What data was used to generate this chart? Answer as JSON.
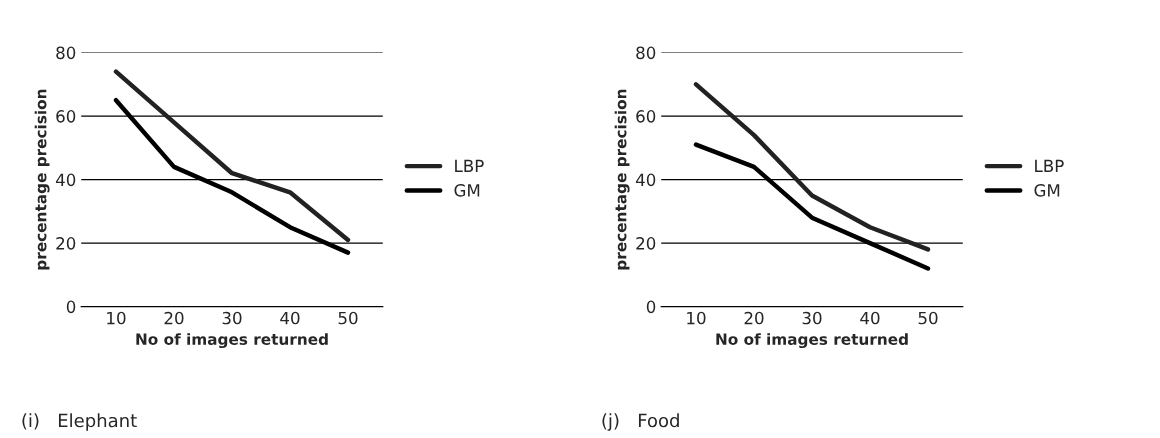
{
  "chart_data": [
    {
      "type": "line",
      "categories": [
        "10",
        "20",
        "30",
        "40",
        "50"
      ],
      "xlabel": "No of images returned",
      "ylabel": "precentage precision",
      "ylim": [
        0,
        80
      ],
      "yticks": [
        0,
        20,
        40,
        60,
        80
      ],
      "grid": "y",
      "legend": "right",
      "marker": "none",
      "line_style": "solid",
      "annotations": [
        "(i)   Elephant"
      ],
      "series": [
        {
          "name": "LBP",
          "color": "#222222",
          "values": [
            74,
            58,
            42,
            36,
            21
          ]
        },
        {
          "name": "GM",
          "color": "#000000",
          "values": [
            65,
            44,
            36,
            25,
            17
          ]
        }
      ]
    },
    {
      "type": "line",
      "categories": [
        "10",
        "20",
        "30",
        "40",
        "50"
      ],
      "xlabel": "No of images returned",
      "ylabel": "precentage precision",
      "ylim": [
        0,
        80
      ],
      "yticks": [
        0,
        20,
        40,
        60,
        80
      ],
      "grid": "y",
      "legend": "right",
      "marker": "none",
      "line_style": "solid",
      "annotations": [
        "(j)   Food"
      ],
      "series": [
        {
          "name": "LBP",
          "color": "#222222",
          "values": [
            70,
            54,
            35,
            25,
            18
          ]
        },
        {
          "name": "GM",
          "color": "#000000",
          "values": [
            51,
            44,
            28,
            20,
            12
          ]
        }
      ]
    }
  ]
}
